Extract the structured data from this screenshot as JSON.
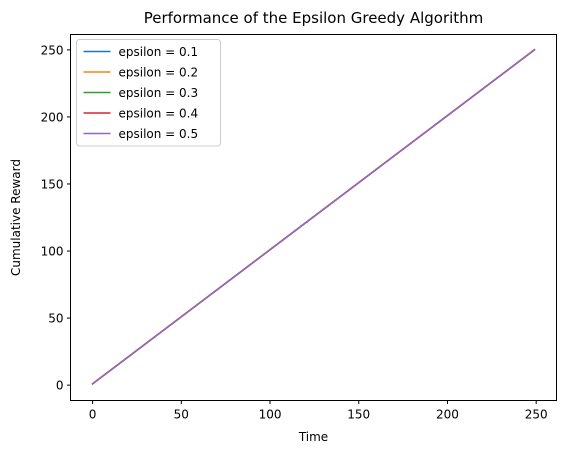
{
  "chart_data": {
    "type": "line",
    "title": "Performance of the Epsilon Greedy Algorithm",
    "xlabel": "Time",
    "ylabel": "Cumulative Reward",
    "xlim": [
      -12.45,
      261.45
    ],
    "ylim": [
      -11.45,
      261.45
    ],
    "xticks": [
      0,
      50,
      100,
      150,
      200,
      250
    ],
    "yticks": [
      0,
      50,
      100,
      150,
      200,
      250
    ],
    "grid": false,
    "legend_position": "top-left",
    "series": [
      {
        "name": "epsilon = 0.1",
        "color": "#1f77b4",
        "x": [
          0,
          249
        ],
        "values": [
          1,
          250
        ]
      },
      {
        "name": "epsilon = 0.2",
        "color": "#ff7f0e",
        "x": [
          0,
          249
        ],
        "values": [
          1,
          250
        ]
      },
      {
        "name": "epsilon = 0.3",
        "color": "#2ca02c",
        "x": [
          0,
          249
        ],
        "values": [
          1,
          250
        ]
      },
      {
        "name": "epsilon = 0.4",
        "color": "#d62728",
        "x": [
          0,
          249
        ],
        "values": [
          1,
          250
        ]
      },
      {
        "name": "epsilon = 0.5",
        "color": "#9467bd",
        "x": [
          0,
          249
        ],
        "values": [
          1,
          250
        ]
      }
    ]
  }
}
